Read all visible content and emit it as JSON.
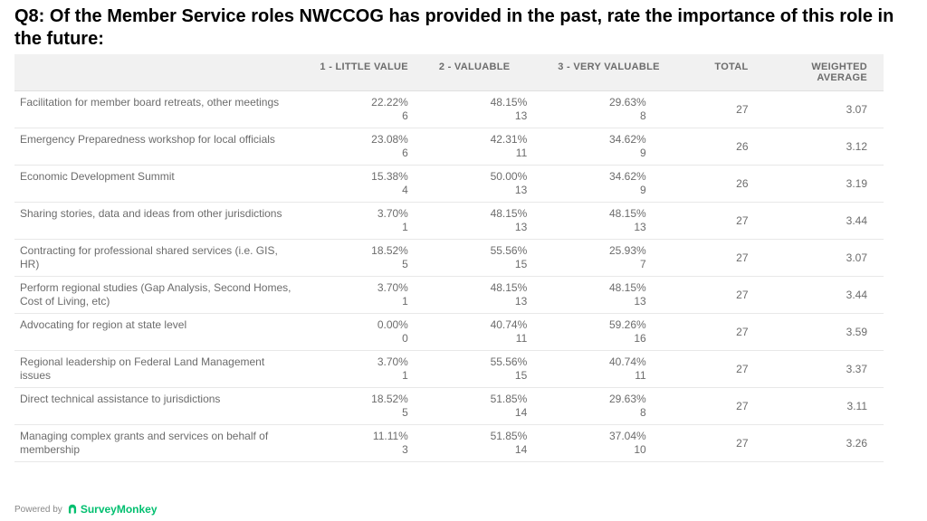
{
  "title": "Q8: Of the Member Service roles NWCCOG has provided in the past, rate the importance of this role in the future:",
  "columns": {
    "blank": "",
    "c1": "1 - LITTLE VALUE",
    "c2": "2 - VALUABLE",
    "c3": "3 - VERY VALUABLE",
    "total": "TOTAL",
    "avg": "WEIGHTED AVERAGE"
  },
  "rows": [
    {
      "label": "Facilitation for member board retreats, other meetings",
      "v1p": "22.22%",
      "v1c": "6",
      "v2p": "48.15%",
      "v2c": "13",
      "v3p": "29.63%",
      "v3c": "8",
      "total": "27",
      "avg": "3.07"
    },
    {
      "label": "Emergency Preparedness workshop for local officials",
      "v1p": "23.08%",
      "v1c": "6",
      "v2p": "42.31%",
      "v2c": "11",
      "v3p": "34.62%",
      "v3c": "9",
      "total": "26",
      "avg": "3.12"
    },
    {
      "label": "Economic Development Summit",
      "v1p": "15.38%",
      "v1c": "4",
      "v2p": "50.00%",
      "v2c": "13",
      "v3p": "34.62%",
      "v3c": "9",
      "total": "26",
      "avg": "3.19"
    },
    {
      "label": "Sharing stories, data and ideas from other jurisdictions",
      "v1p": "3.70%",
      "v1c": "1",
      "v2p": "48.15%",
      "v2c": "13",
      "v3p": "48.15%",
      "v3c": "13",
      "total": "27",
      "avg": "3.44"
    },
    {
      "label": "Contracting for professional shared services (i.e. GIS, HR)",
      "v1p": "18.52%",
      "v1c": "5",
      "v2p": "55.56%",
      "v2c": "15",
      "v3p": "25.93%",
      "v3c": "7",
      "total": "27",
      "avg": "3.07"
    },
    {
      "label": "Perform regional studies (Gap Analysis, Second Homes, Cost of Living, etc)",
      "v1p": "3.70%",
      "v1c": "1",
      "v2p": "48.15%",
      "v2c": "13",
      "v3p": "48.15%",
      "v3c": "13",
      "total": "27",
      "avg": "3.44"
    },
    {
      "label": "Advocating for region at state level",
      "v1p": "0.00%",
      "v1c": "0",
      "v2p": "40.74%",
      "v2c": "11",
      "v3p": "59.26%",
      "v3c": "16",
      "total": "27",
      "avg": "3.59"
    },
    {
      "label": "Regional leadership on Federal Land Management issues",
      "v1p": "3.70%",
      "v1c": "1",
      "v2p": "55.56%",
      "v2c": "15",
      "v3p": "40.74%",
      "v3c": "11",
      "total": "27",
      "avg": "3.37"
    },
    {
      "label": "Direct technical assistance to jurisdictions",
      "v1p": "18.52%",
      "v1c": "5",
      "v2p": "51.85%",
      "v2c": "14",
      "v3p": "29.63%",
      "v3c": "8",
      "total": "27",
      "avg": "3.11"
    },
    {
      "label": "Managing complex grants and services on behalf of membership",
      "v1p": "11.11%",
      "v1c": "3",
      "v2p": "51.85%",
      "v2c": "14",
      "v3p": "37.04%",
      "v3c": "10",
      "total": "27",
      "avg": "3.26"
    }
  ],
  "footer": {
    "powered": "Powered by",
    "brand": "SurveyMonkey"
  },
  "colors": {
    "header_bg": "#f1f1f1",
    "text": "#6c6c6c",
    "title": "#000000",
    "border": "#e8e8e8",
    "brand": "#00bf6f"
  }
}
